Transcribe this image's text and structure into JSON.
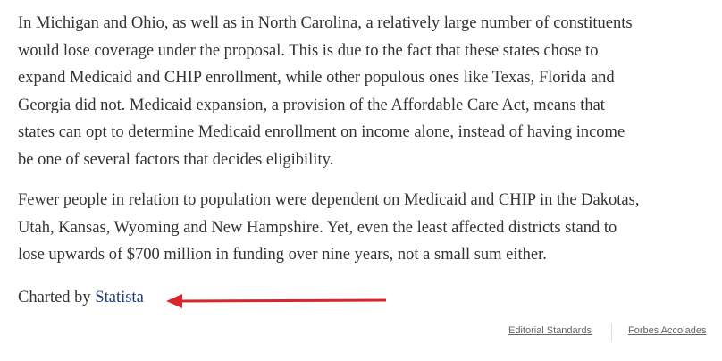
{
  "paragraphs": [
    {
      "lines": [
        "In Michigan and Ohio, as well as in North Carolina, a relatively large number of constituents",
        "would lose coverage under the proposal. This is due to the fact that these states chose to",
        "expand Medicaid and CHIP enrollment, while other populous ones like Texas, Florida and",
        "Georgia did not. Medicaid expansion, a provision of the Affordable Care Act, means that",
        "states can opt to determine Medicaid enrollment on income alone, instead of having income",
        "be one of several factors that decides eligibility."
      ]
    },
    {
      "lines": [
        "Fewer people in relation to population were dependent on Medicaid and CHIP in the Dakotas,",
        "Utah, Kansas, Wyoming and New Hampshire. Yet, even the least affected districts stand to",
        "lose upwards of $700 million in funding over nine years, not a small sum either."
      ]
    }
  ],
  "credit": {
    "prefix": "Charted by",
    "link": "Statista"
  },
  "footer": {
    "links": [
      "Editorial Standards",
      "Forbes Accolades"
    ]
  }
}
